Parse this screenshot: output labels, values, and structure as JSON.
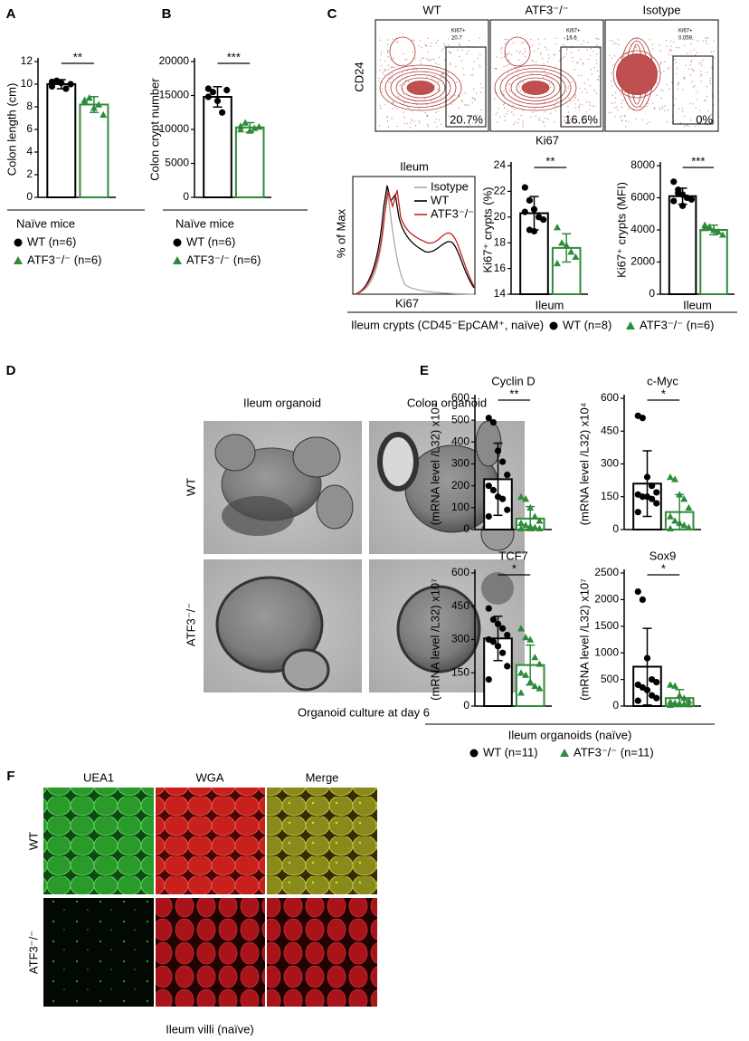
{
  "chart_data": [
    {
      "type": "bar",
      "ylabel": "Colon length (cm)",
      "ylim": [
        0,
        12
      ],
      "yticks": [
        0,
        2,
        4,
        6,
        8,
        10,
        12
      ],
      "significance": "**",
      "series": [
        {
          "color": "#000000",
          "marker": "circle",
          "mean": 10,
          "error": 0.4,
          "values": [
            9.8,
            10.3,
            10.1,
            9.6,
            10.0,
            10.2
          ]
        },
        {
          "color": "#2e8b3a",
          "marker": "triangle",
          "mean": 8.2,
          "error": 0.7,
          "values": [
            8.6,
            8.8,
            7.9,
            8.2,
            7.3,
            8.4
          ]
        }
      ]
    },
    {
      "type": "bar",
      "ylabel": "Colon crypt number",
      "ylim": [
        0,
        20000
      ],
      "yticks": [
        0,
        5000,
        10000,
        15000,
        20000
      ],
      "significance": "***",
      "series": [
        {
          "color": "#000000",
          "marker": "circle",
          "mean": 14800,
          "error": 1500,
          "values": [
            16000,
            15500,
            14200,
            12500,
            15800,
            14800
          ]
        },
        {
          "color": "#2e8b3a",
          "marker": "triangle",
          "mean": 10300,
          "error": 700,
          "values": [
            10500,
            11000,
            9800,
            10200,
            10400,
            10000
          ]
        }
      ]
    },
    {
      "type": "bar",
      "ylabel": "Ki67⁺ crypts (%)",
      "xlabel": "Ileum",
      "ylim": [
        14,
        24
      ],
      "yticks": [
        14,
        16,
        18,
        20,
        22,
        24
      ],
      "significance": "**",
      "series": [
        {
          "color": "#000000",
          "marker": "circle",
          "mean": 20.3,
          "error": 1.3,
          "values": [
            22.3,
            21.3,
            20.6,
            20.0,
            19.8,
            20.4,
            19.0,
            18.9
          ]
        },
        {
          "color": "#2e8b3a",
          "marker": "triangle",
          "mean": 17.6,
          "error": 1.1,
          "values": [
            19.2,
            18.0,
            17.8,
            17.3,
            16.9,
            16.4
          ]
        }
      ]
    },
    {
      "type": "bar",
      "ylabel": "Ki67⁺ crypts (MFI)",
      "xlabel": "Ileum",
      "ylim": [
        0,
        8000
      ],
      "yticks": [
        0,
        2000,
        4000,
        6000,
        8000
      ],
      "significance": "***",
      "series": [
        {
          "color": "#000000",
          "marker": "circle",
          "mean": 6100,
          "error": 500,
          "values": [
            7000,
            6500,
            6200,
            6000,
            5900,
            5800,
            6300,
            5500
          ]
        },
        {
          "color": "#2e8b3a",
          "marker": "triangle",
          "mean": 4000,
          "error": 300,
          "values": [
            4300,
            4200,
            4000,
            3900,
            3700,
            4100
          ]
        }
      ]
    },
    {
      "type": "bar",
      "title": "Cyclin D",
      "ylabel": "(mRNA level /L32) x10⁴",
      "ylim": [
        0,
        600
      ],
      "yticks": [
        0,
        100,
        200,
        300,
        400,
        500,
        600
      ],
      "significance": "**",
      "series": [
        {
          "color": "#000000",
          "marker": "circle",
          "mean": 230,
          "error": 165,
          "values": [
            510,
            490,
            360,
            310,
            250,
            200,
            180,
            150,
            140,
            90,
            60
          ]
        },
        {
          "color": "#2e8b3a",
          "marker": "triangle",
          "mean": 50,
          "error": 55,
          "values": [
            150,
            140,
            100,
            60,
            40,
            30,
            20,
            15,
            10,
            5,
            5
          ]
        }
      ]
    },
    {
      "type": "bar",
      "title": "c-Myc",
      "ylabel": "(mRNA level /L32) x10⁴",
      "ylim": [
        0,
        600
      ],
      "yticks": [
        0,
        150,
        300,
        450,
        600
      ],
      "significance": "*",
      "series": [
        {
          "color": "#000000",
          "marker": "circle",
          "mean": 210,
          "error": 150,
          "values": [
            520,
            510,
            240,
            200,
            170,
            160,
            150,
            150,
            140,
            120,
            80
          ]
        },
        {
          "color": "#2e8b3a",
          "marker": "triangle",
          "mean": 80,
          "error": 80,
          "values": [
            240,
            230,
            160,
            140,
            100,
            60,
            40,
            30,
            20,
            10,
            5
          ]
        }
      ]
    },
    {
      "type": "bar",
      "title": "TCF7",
      "ylabel": "(mRNA level /L32) x10⁷",
      "ylim": [
        0,
        600
      ],
      "yticks": [
        0,
        150,
        300,
        450,
        600
      ],
      "significance": "*",
      "series": [
        {
          "color": "#000000",
          "marker": "circle",
          "mean": 305,
          "error": 100,
          "values": [
            440,
            390,
            370,
            350,
            320,
            300,
            290,
            270,
            240,
            180,
            120
          ]
        },
        {
          "color": "#2e8b3a",
          "marker": "triangle",
          "mean": 185,
          "error": 90,
          "values": [
            350,
            310,
            300,
            220,
            190,
            150,
            140,
            110,
            90,
            80,
            60
          ]
        }
      ]
    },
    {
      "type": "bar",
      "title": "Sox9",
      "ylabel": "(mRNA level /L32) x10⁷",
      "ylim": [
        0,
        2500
      ],
      "yticks": [
        0,
        500,
        1000,
        1500,
        2000,
        2500
      ],
      "significance": "*",
      "series": [
        {
          "color": "#000000",
          "marker": "circle",
          "mean": 740,
          "error": 720,
          "values": [
            2150,
            2000,
            900,
            500,
            450,
            400,
            350,
            300,
            200,
            150,
            100
          ]
        },
        {
          "color": "#2e8b3a",
          "marker": "triangle",
          "mean": 150,
          "error": 160,
          "values": [
            400,
            380,
            200,
            150,
            100,
            80,
            60,
            50,
            40,
            30,
            20
          ]
        }
      ]
    }
  ],
  "panels": {
    "A": {
      "letter": "A",
      "legend_title": "Naïve mice",
      "legend": [
        {
          "label": "WT (n=6)",
          "color": "#000000",
          "marker": "circle"
        },
        {
          "label": "ATF3⁻/⁻ (n=6)",
          "color": "#2e8b3a",
          "marker": "triangle"
        }
      ]
    },
    "B": {
      "letter": "B",
      "legend_title": "Naïve mice",
      "legend": [
        {
          "label": "WT (n=6)",
          "color": "#000000",
          "marker": "circle"
        },
        {
          "label": "ATF3⁻/⁻ (n=6)",
          "color": "#2e8b3a",
          "marker": "triangle"
        }
      ]
    },
    "C": {
      "letter": "C",
      "flow": {
        "ylabel": "CD24",
        "xlabel": "Ki67",
        "plots": [
          {
            "title": "WT",
            "gate_label": "Ki67+",
            "gate_value": "20.7",
            "percent": "20.7%"
          },
          {
            "title": "ATF3⁻/⁻",
            "gate_label": "Ki67+",
            "gate_value": "16.6",
            "percent": "16.6%"
          },
          {
            "title": "Isotype",
            "gate_label": "Ki67+",
            "gate_value": "0.059",
            "percent": "0%"
          }
        ]
      },
      "histogram": {
        "title": "Ileum",
        "ylabel": "% of Max",
        "xlabel": "Ki67",
        "legend": [
          {
            "label": "Isotype",
            "color": "#aaaaaa"
          },
          {
            "label": "WT",
            "color": "#000000"
          },
          {
            "label": "ATF3⁻/⁻",
            "color": "#cc2222"
          }
        ]
      },
      "caption": "Ileum crypts (CD45⁻EpCAM⁺, naïve)",
      "legend": [
        {
          "label": "WT (n=8)",
          "color": "#000000",
          "marker": "circle"
        },
        {
          "label": "ATF3⁻/⁻ (n=6)",
          "color": "#2e8b3a",
          "marker": "triangle"
        }
      ]
    },
    "D": {
      "letter": "D",
      "columns": [
        "Ileum organoid",
        "Colon organoid"
      ],
      "rows": [
        "WT",
        "ATF3⁻/⁻"
      ],
      "caption": "Organoid culture at day 6"
    },
    "E": {
      "letter": "E",
      "caption": "Ileum organoids (naïve)",
      "legend": [
        {
          "label": "WT (n=11)",
          "color": "#000000",
          "marker": "circle"
        },
        {
          "label": "ATF3⁻/⁻ (n=11)",
          "color": "#2e8b3a",
          "marker": "triangle"
        }
      ]
    },
    "F": {
      "letter": "F",
      "columns": [
        "UEA1",
        "WGA",
        "Merge"
      ],
      "rows": [
        "WT",
        "ATF3⁻/⁻"
      ],
      "caption": "Ileum villi (naïve)"
    }
  }
}
